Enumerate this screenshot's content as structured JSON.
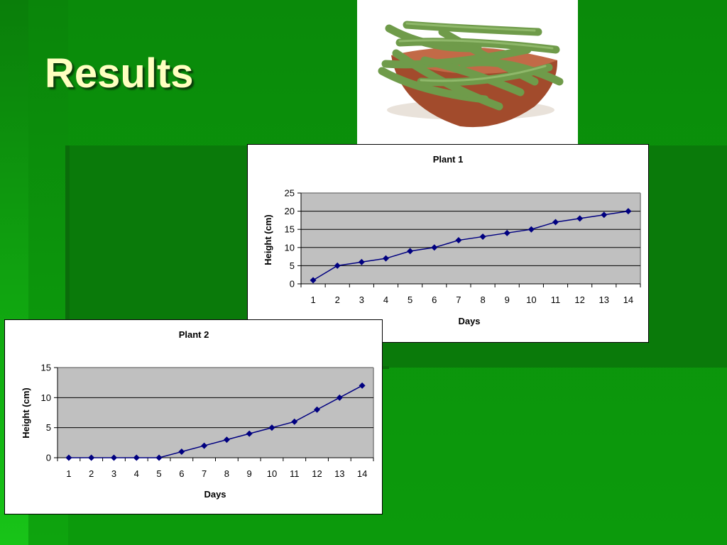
{
  "slide": {
    "title": "Results",
    "colors": {
      "background": "#0b930b",
      "title": "#ffffc0",
      "plot_area": "#c0c0c0",
      "series": "#000080"
    }
  },
  "photo": {
    "icon": "green-beans-bowl-photo"
  },
  "chart_data": [
    {
      "type": "line",
      "title": "Plant 1",
      "xlabel": "Days",
      "ylabel": "Height (cm)",
      "categories": [
        "1",
        "2",
        "3",
        "4",
        "5",
        "6",
        "7",
        "8",
        "9",
        "10",
        "11",
        "12",
        "13",
        "14"
      ],
      "values": [
        1,
        5,
        6,
        7,
        9,
        10,
        12,
        13,
        14,
        15,
        17,
        18,
        19,
        20
      ],
      "ylim": [
        0,
        25
      ],
      "yticks": [
        0,
        5,
        10,
        15,
        20,
        25
      ],
      "grid": true,
      "legend": "none"
    },
    {
      "type": "line",
      "title": "Plant 2",
      "xlabel": "Days",
      "ylabel": "Height (cm)",
      "categories": [
        "1",
        "2",
        "3",
        "4",
        "5",
        "6",
        "7",
        "8",
        "9",
        "10",
        "11",
        "12",
        "13",
        "14"
      ],
      "values": [
        0,
        0,
        0,
        0,
        0,
        1,
        2,
        3,
        4,
        5,
        6,
        8,
        10,
        12
      ],
      "ylim": [
        0,
        15
      ],
      "yticks": [
        0,
        5,
        10,
        15
      ],
      "grid": true,
      "legend": "none"
    }
  ]
}
